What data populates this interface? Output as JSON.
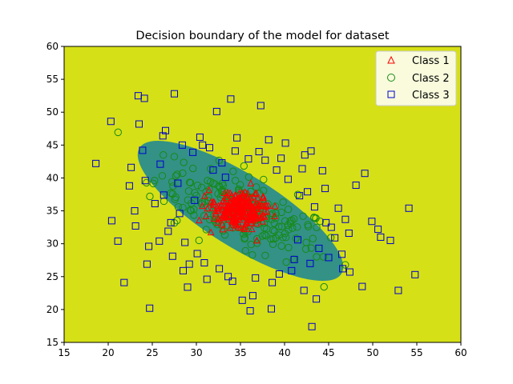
{
  "chart_data": {
    "type": "scatter",
    "title": "Decision boundary of the model for dataset",
    "xlabel": "",
    "ylabel": "",
    "xlim": [
      15,
      60
    ],
    "ylim": [
      15,
      60
    ],
    "xticks": [
      15,
      20,
      25,
      30,
      35,
      40,
      45,
      50,
      55,
      60
    ],
    "yticks": [
      15,
      20,
      25,
      30,
      35,
      40,
      45,
      50,
      55,
      60
    ],
    "grid": false,
    "legend_position": "top-right",
    "colors": {
      "background_region": "#d6e016",
      "boundary_region": "#2a8c8c",
      "class1": "#ff0000",
      "class2": "#168a16",
      "class3": "#0000cc"
    },
    "series": [
      {
        "name": "Class 1",
        "marker": "triangle",
        "color": "#ff0000",
        "cluster": {
          "center": [
            35,
            35
          ],
          "spread": [
            1.6,
            1.3
          ],
          "angle": -25,
          "count": 260
        }
      },
      {
        "name": "Class 2",
        "marker": "circle",
        "color": "#168a16",
        "cluster": {
          "center": [
            35,
            35
          ],
          "spread": [
            5.2,
            2.4
          ],
          "angle": -32,
          "count": 230
        }
      },
      {
        "name": "Class 3",
        "marker": "square",
        "color": "#0000cc",
        "points": [
          [
            18.6,
            42.2
          ],
          [
            20.3,
            48.6
          ],
          [
            20.4,
            33.5
          ],
          [
            21.1,
            30.4
          ],
          [
            21.8,
            24.1
          ],
          [
            22.4,
            38.8
          ],
          [
            23.1,
            32.7
          ],
          [
            23.4,
            52.5
          ],
          [
            23.5,
            48.2
          ],
          [
            24.1,
            52.1
          ],
          [
            24.4,
            26.9
          ],
          [
            24.7,
            20.2
          ],
          [
            25.3,
            36.1
          ],
          [
            25.8,
            30.4
          ],
          [
            26.2,
            46.4
          ],
          [
            26.5,
            47.2
          ],
          [
            27.1,
            33.2
          ],
          [
            27.5,
            52.8
          ],
          [
            27.3,
            28.1
          ],
          [
            28.4,
            45.0
          ],
          [
            28.5,
            25.9
          ],
          [
            29.0,
            23.4
          ],
          [
            30.4,
            46.2
          ],
          [
            30.7,
            45.0
          ],
          [
            31.2,
            24.6
          ],
          [
            31.9,
            41.2
          ],
          [
            32.3,
            50.1
          ],
          [
            33.3,
            40.1
          ],
          [
            33.9,
            52.0
          ],
          [
            34.4,
            44.1
          ],
          [
            34.6,
            46.1
          ],
          [
            35.2,
            21.4
          ],
          [
            35.9,
            42.9
          ],
          [
            36.1,
            19.8
          ],
          [
            36.4,
            22.1
          ],
          [
            37.3,
            51.0
          ],
          [
            38.2,
            45.8
          ],
          [
            38.5,
            20.1
          ],
          [
            39.1,
            41.2
          ],
          [
            39.6,
            43.0
          ],
          [
            40.1,
            45.3
          ],
          [
            40.8,
            25.9
          ],
          [
            41.5,
            30.6
          ],
          [
            42.2,
            22.9
          ],
          [
            42.3,
            43.5
          ],
          [
            43.1,
            17.4
          ],
          [
            43.6,
            21.6
          ],
          [
            44.3,
            41.1
          ],
          [
            44.7,
            33.2
          ],
          [
            45.0,
            27.9
          ],
          [
            46.6,
            26.2
          ],
          [
            47.4,
            25.7
          ],
          [
            48.1,
            38.9
          ],
          [
            48.8,
            23.5
          ],
          [
            49.1,
            40.7
          ],
          [
            49.9,
            33.4
          ],
          [
            50.6,
            32.2
          ],
          [
            50.9,
            31.0
          ],
          [
            52.0,
            30.5
          ],
          [
            52.9,
            22.9
          ],
          [
            54.1,
            35.4
          ],
          [
            54.8,
            25.3
          ],
          [
            22.6,
            41.6
          ],
          [
            23.0,
            35.0
          ],
          [
            23.9,
            44.2
          ],
          [
            24.2,
            39.6
          ],
          [
            24.6,
            29.6
          ],
          [
            25.9,
            42.1
          ],
          [
            26.3,
            37.4
          ],
          [
            26.8,
            31.9
          ],
          [
            27.9,
            39.2
          ],
          [
            28.1,
            34.6
          ],
          [
            28.7,
            30.2
          ],
          [
            29.2,
            26.9
          ],
          [
            29.6,
            43.9
          ],
          [
            30.1,
            28.5
          ],
          [
            30.9,
            27.1
          ],
          [
            31.5,
            44.6
          ],
          [
            32.6,
            26.2
          ],
          [
            32.9,
            42.3
          ],
          [
            33.6,
            25.0
          ],
          [
            34.1,
            24.3
          ],
          [
            36.7,
            24.8
          ],
          [
            37.1,
            44.0
          ],
          [
            37.8,
            42.7
          ],
          [
            38.6,
            24.1
          ],
          [
            39.4,
            25.4
          ],
          [
            40.4,
            39.8
          ],
          [
            41.1,
            27.6
          ],
          [
            41.7,
            37.3
          ],
          [
            42.6,
            37.9
          ],
          [
            42.9,
            27.0
          ],
          [
            43.4,
            35.6
          ],
          [
            43.9,
            29.3
          ],
          [
            44.6,
            38.4
          ],
          [
            45.3,
            32.5
          ],
          [
            45.7,
            30.9
          ],
          [
            46.1,
            35.4
          ],
          [
            46.5,
            28.4
          ],
          [
            46.9,
            33.7
          ],
          [
            47.3,
            31.6
          ],
          [
            42.0,
            41.4
          ],
          [
            43.0,
            44.1
          ],
          [
            29.8,
            36.6
          ]
        ]
      }
    ],
    "decision_regions": [
      {
        "label": "outer",
        "center": [
          35,
          35
        ],
        "semi_axes": [
          13.5,
          5.5
        ],
        "angle": -32
      }
    ]
  }
}
